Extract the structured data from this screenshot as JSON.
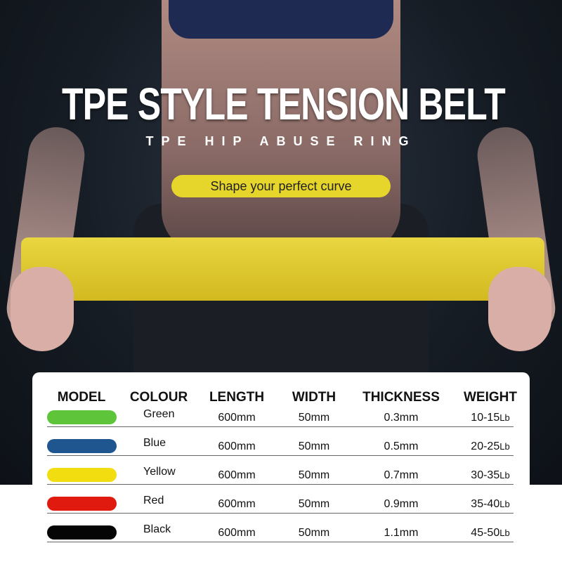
{
  "banner": {
    "title": "TPE STYLE TENSION BELT",
    "subtitle": "TPE HIP ABUSE RING",
    "tagline": "Shape your perfect curve"
  },
  "table": {
    "headers": [
      "MODEL",
      "COLOUR",
      "LENGTH",
      "WIDTH",
      "THICKNESS",
      "WEIGHT"
    ],
    "rows": [
      {
        "swatch": "#5ec43a",
        "colour": "Green",
        "length": "600mm",
        "width": "50mm",
        "thickness": "0.3mm",
        "weight": "10-15",
        "unit": "Lb"
      },
      {
        "swatch": "#1f5690",
        "colour": "Blue",
        "length": "600mm",
        "width": "50mm",
        "thickness": "0.5mm",
        "weight": "20-25",
        "unit": "Lb"
      },
      {
        "swatch": "#f2dd10",
        "colour": "Yellow",
        "length": "600mm",
        "width": "50mm",
        "thickness": "0.7mm",
        "weight": "30-35",
        "unit": "Lb"
      },
      {
        "swatch": "#e01a0e",
        "colour": "Red",
        "length": "600mm",
        "width": "50mm",
        "thickness": "0.9mm",
        "weight": "35-40",
        "unit": "Lb"
      },
      {
        "swatch": "#050505",
        "colour": "Black",
        "length": "600mm",
        "width": "50mm",
        "thickness": "1.1mm",
        "weight": "45-50",
        "unit": "Lb"
      }
    ]
  }
}
